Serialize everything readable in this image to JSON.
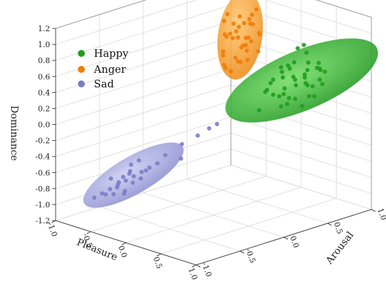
{
  "chart_data": {
    "type": "scatter",
    "projection": "3d",
    "xlabel": "Pleasure",
    "ylabel": "Arousal",
    "zlabel": "Dominance",
    "xlim": [
      -1,
      1
    ],
    "ylim": [
      -1,
      1
    ],
    "zlim": [
      -1.2,
      1.2
    ],
    "x_ticks": [
      "-1.0",
      "-0.5",
      "0.0",
      "0.5",
      "1.0"
    ],
    "y_ticks": [
      "-1.0",
      "-0.5",
      "0.0",
      "0.5",
      "1.0"
    ],
    "z_ticks": [
      "-1.2",
      "-1.0",
      "-0.8",
      "-0.6",
      "-0.4",
      "-0.2",
      "0.0",
      "0.2",
      "0.4",
      "0.6",
      "0.8",
      "1.0",
      "1.2"
    ],
    "grid": true,
    "legend_position": "top-left",
    "series": [
      {
        "name": "Happy",
        "color": "#1f9e1f",
        "ellipsoid_color": "#22b522",
        "points": [
          [
            0.4,
            0.45,
            0.6
          ],
          [
            0.7,
            0.3,
            0.35
          ],
          [
            0.55,
            0.6,
            0.5
          ],
          [
            0.6,
            0.55,
            0.9
          ],
          [
            0.8,
            0.4,
            0.6
          ],
          [
            0.65,
            0.7,
            0.55
          ],
          [
            0.75,
            0.2,
            0.45
          ],
          [
            0.5,
            0.35,
            0.3
          ],
          [
            0.85,
            0.5,
            0.7
          ],
          [
            0.45,
            0.6,
            0.8
          ],
          [
            0.7,
            0.45,
            0.2
          ],
          [
            0.6,
            0.3,
            0.65
          ],
          [
            0.55,
            0.5,
            0.4
          ],
          [
            0.9,
            0.35,
            0.55
          ],
          [
            0.65,
            0.4,
            0.75
          ],
          [
            0.45,
            0.25,
            0.4
          ],
          [
            0.75,
            0.55,
            0.3
          ],
          [
            0.8,
            0.6,
            0.45
          ],
          [
            0.5,
            0.45,
            0.65
          ],
          [
            0.6,
            0.65,
            0.35
          ],
          [
            0.7,
            0.5,
            0.85
          ],
          [
            0.35,
            0.4,
            0.45
          ],
          [
            0.85,
            0.25,
            0.4
          ],
          [
            0.55,
            0.35,
            0.55
          ],
          [
            0.65,
            0.25,
            0.25
          ],
          [
            0.75,
            0.6,
            0.7
          ],
          [
            0.6,
            0.45,
            0.5
          ],
          [
            0.9,
            0.55,
            0.65
          ],
          [
            0.4,
            0.55,
            0.55
          ],
          [
            0.7,
            0.35,
            0.6
          ],
          [
            0.8,
            0.45,
            0.35
          ],
          [
            0.5,
            0.25,
            0.5
          ],
          [
            0.65,
            0.55,
            0.6
          ],
          [
            0.55,
            0.4,
            0.2
          ],
          [
            0.85,
            0.4,
            0.8
          ],
          [
            0.45,
            0.45,
            0.35
          ],
          [
            0.6,
            0.2,
            0.4
          ],
          [
            0.75,
            0.45,
            0.5
          ],
          [
            0.7,
            0.65,
            0.6
          ],
          [
            0.95,
            0.45,
            0.6
          ],
          [
            0.3,
            0.35,
            0.3
          ],
          [
            0.4,
            0.2,
            0.15
          ]
        ]
      },
      {
        "name": "Anger",
        "color": "#f07d0a",
        "ellipsoid_color": "#f39a2e",
        "points": [
          [
            -0.5,
            0.75,
            0.8
          ],
          [
            -0.4,
            0.6,
            0.7
          ],
          [
            -0.6,
            0.7,
            0.6
          ],
          [
            -0.45,
            0.8,
            0.9
          ],
          [
            -0.55,
            0.55,
            0.5
          ],
          [
            -0.35,
            0.7,
            0.85
          ],
          [
            -0.5,
            0.65,
            0.4
          ],
          [
            -0.65,
            0.75,
            0.75
          ],
          [
            -0.4,
            0.85,
            0.65
          ],
          [
            -0.55,
            0.6,
            0.95
          ],
          [
            -0.45,
            0.7,
            0.55
          ],
          [
            -0.6,
            0.8,
            0.45
          ],
          [
            -0.5,
            0.55,
            0.7
          ],
          [
            -0.35,
            0.65,
            0.6
          ],
          [
            -0.45,
            0.75,
            0.35
          ],
          [
            -0.55,
            0.85,
            0.8
          ],
          [
            -0.4,
            0.7,
            0.5
          ],
          [
            -0.6,
            0.6,
            0.85
          ],
          [
            -0.5,
            0.8,
            0.6
          ],
          [
            -0.45,
            0.55,
            0.75
          ],
          [
            -0.55,
            0.75,
            0.3
          ],
          [
            -0.35,
            0.8,
            0.7
          ],
          [
            -0.65,
            0.65,
            0.65
          ],
          [
            -0.5,
            0.7,
            0.9
          ],
          [
            -0.4,
            0.6,
            0.4
          ],
          [
            -0.6,
            0.85,
            0.55
          ],
          [
            -0.45,
            0.65,
            0.8
          ],
          [
            -0.55,
            0.7,
            0.7
          ],
          [
            -0.5,
            0.6,
            0.25
          ],
          [
            -0.7,
            0.7,
            0.2
          ],
          [
            -0.3,
            0.75,
            0.5
          ],
          [
            -0.45,
            0.85,
            0.95
          ],
          [
            -0.55,
            0.55,
            0.45
          ],
          [
            -0.4,
            0.75,
            0.6
          ],
          [
            -0.6,
            0.6,
            0.3
          ],
          [
            -0.5,
            0.85,
            0.75
          ]
        ]
      },
      {
        "name": "Sad",
        "color": "#7b7ec6",
        "ellipsoid_color": "#8c8fd4",
        "points": [
          [
            -0.5,
            -0.6,
            -0.7
          ],
          [
            -0.4,
            -0.5,
            -0.6
          ],
          [
            -0.6,
            -0.7,
            -0.8
          ],
          [
            -0.45,
            -0.55,
            -0.65
          ],
          [
            -0.55,
            -0.65,
            -0.75
          ],
          [
            -0.35,
            -0.45,
            -0.55
          ],
          [
            -0.65,
            -0.75,
            -0.85
          ],
          [
            -0.5,
            -0.55,
            -0.6
          ],
          [
            -0.4,
            -0.6,
            -0.7
          ],
          [
            -0.6,
            -0.6,
            -0.75
          ],
          [
            -0.45,
            -0.65,
            -0.8
          ],
          [
            -0.55,
            -0.5,
            -0.55
          ],
          [
            -0.3,
            -0.4,
            -0.5
          ],
          [
            -0.7,
            -0.8,
            -0.9
          ],
          [
            -0.5,
            -0.7,
            -0.75
          ],
          [
            -0.4,
            -0.45,
            -0.6
          ],
          [
            -0.6,
            -0.55,
            -0.7
          ],
          [
            -0.45,
            -0.6,
            -0.6
          ],
          [
            -0.55,
            -0.7,
            -0.85
          ],
          [
            -0.35,
            -0.55,
            -0.65
          ],
          [
            -0.65,
            -0.65,
            -0.7
          ],
          [
            -0.5,
            -0.45,
            -0.5
          ],
          [
            -0.4,
            -0.7,
            -0.8
          ],
          [
            -0.6,
            -0.75,
            -0.85
          ],
          [
            -0.2,
            -0.2,
            -0.3
          ],
          [
            -0.1,
            -0.1,
            -0.2
          ],
          [
            0.0,
            -0.05,
            -0.1
          ],
          [
            0.05,
            0.0,
            -0.05
          ],
          [
            -0.15,
            -0.25,
            -0.45
          ],
          [
            -0.25,
            -0.35,
            -0.4
          ]
        ]
      }
    ]
  }
}
